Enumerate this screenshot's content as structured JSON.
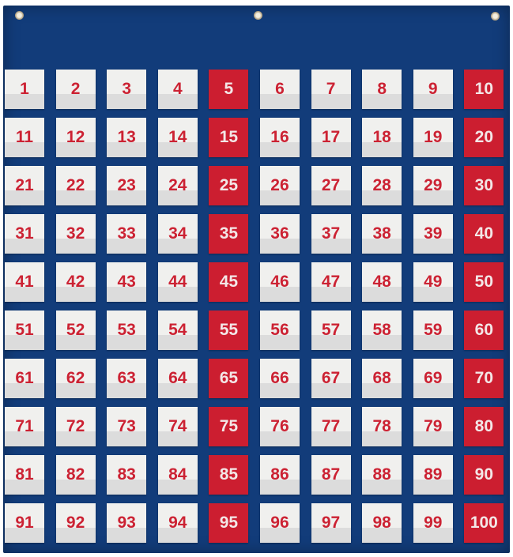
{
  "chart": {
    "rows": [
      [
        1,
        2,
        3,
        4,
        5,
        6,
        7,
        8,
        9,
        10
      ],
      [
        11,
        12,
        13,
        14,
        15,
        16,
        17,
        18,
        19,
        20
      ],
      [
        21,
        22,
        23,
        24,
        25,
        26,
        27,
        28,
        29,
        30
      ],
      [
        31,
        32,
        33,
        34,
        35,
        36,
        37,
        38,
        39,
        40
      ],
      [
        41,
        42,
        43,
        44,
        45,
        46,
        47,
        48,
        49,
        50
      ],
      [
        51,
        52,
        53,
        54,
        55,
        56,
        57,
        58,
        59,
        60
      ],
      [
        61,
        62,
        63,
        64,
        65,
        66,
        67,
        68,
        69,
        70
      ],
      [
        71,
        72,
        73,
        74,
        75,
        76,
        77,
        78,
        79,
        80
      ],
      [
        81,
        82,
        83,
        84,
        85,
        86,
        87,
        88,
        89,
        90
      ],
      [
        91,
        92,
        93,
        94,
        95,
        96,
        97,
        98,
        99,
        100
      ]
    ],
    "highlighted_multiple": 5
  },
  "colors": {
    "board": "#123c7a",
    "card": "#f0f0ee",
    "highlight_card": "#cc1e30",
    "number": "#cc2233",
    "highlight_number": "#f3e7e7"
  }
}
